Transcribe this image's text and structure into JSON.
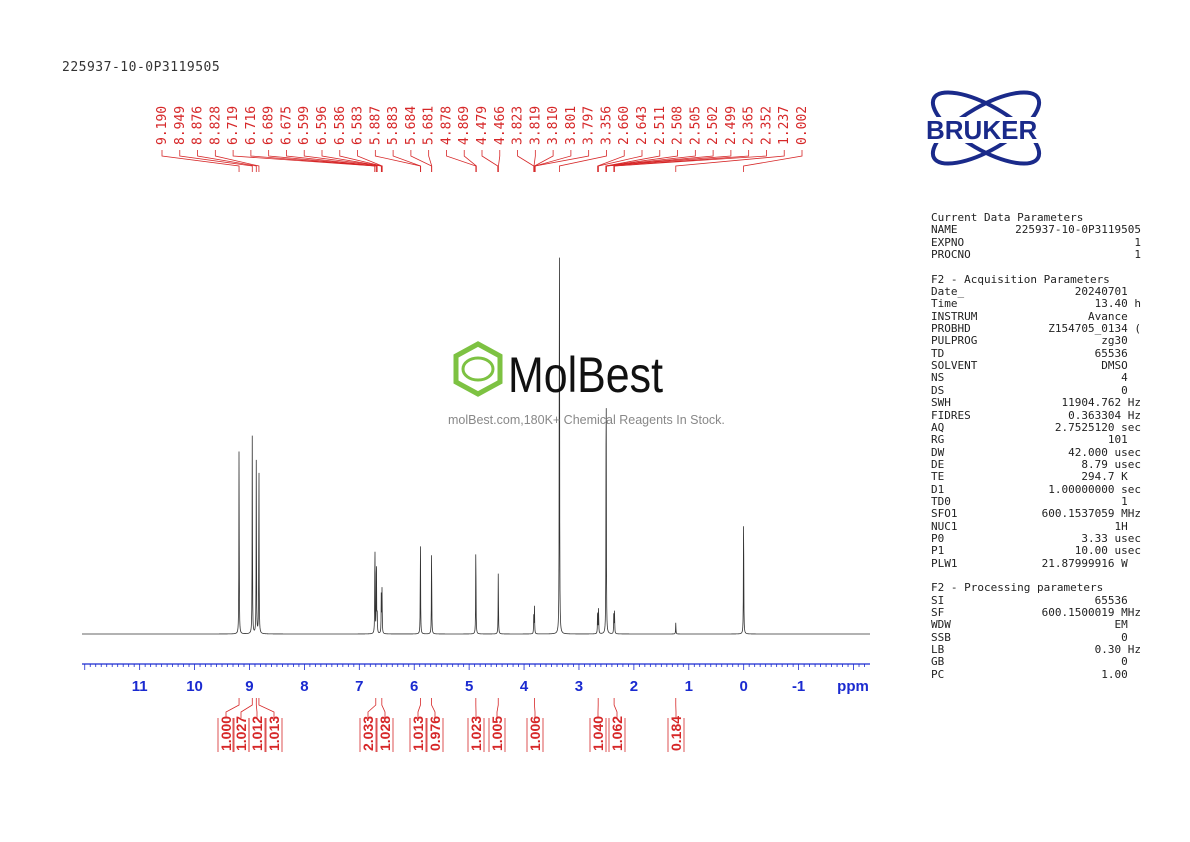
{
  "sample_name": "225937-10-0P3119505",
  "logo": {
    "text": "BRUKER",
    "color": "#1a2a8a"
  },
  "watermark": {
    "brand": "MolBest",
    "tagline": "molBest.com,180K+ Chemical Reagents In Stock.",
    "color": "#7dc242"
  },
  "colors": {
    "peak_labels": "#d62728",
    "axis": "#1a2ad0",
    "spectrum": "#333333"
  },
  "chart_data": {
    "type": "line",
    "xlabel": "ppm",
    "xlim": [
      12.05,
      -2.3
    ],
    "x_reversed": true,
    "x_ticks": [
      "11",
      "10",
      "9",
      "8",
      "7",
      "6",
      "5",
      "4",
      "3",
      "2",
      "1",
      "0",
      "-1"
    ],
    "x_tick_values": [
      11,
      10,
      9,
      8,
      7,
      6,
      5,
      4,
      3,
      2,
      1,
      0,
      -1
    ],
    "peaks": [
      {
        "ppm": 9.19,
        "intensity": 0.43
      },
      {
        "ppm": 8.949,
        "intensity": 0.45
      },
      {
        "ppm": 8.876,
        "intensity": 0.4
      },
      {
        "ppm": 8.828,
        "intensity": 0.4
      },
      {
        "ppm": 6.716,
        "intensity": 0.22
      },
      {
        "ppm": 6.689,
        "intensity": 0.19
      },
      {
        "ppm": 6.675,
        "intensity": 0.05
      },
      {
        "ppm": 6.599,
        "intensity": 0.1
      },
      {
        "ppm": 6.586,
        "intensity": 0.1
      },
      {
        "ppm": 5.887,
        "intensity": 0.22
      },
      {
        "ppm": 5.684,
        "intensity": 0.2
      },
      {
        "ppm": 4.878,
        "intensity": 0.21
      },
      {
        "ppm": 4.469,
        "intensity": 0.14
      },
      {
        "ppm": 3.823,
        "intensity": 0.04
      },
      {
        "ppm": 3.81,
        "intensity": 0.06
      },
      {
        "ppm": 3.356,
        "intensity": 1.0
      },
      {
        "ppm": 2.66,
        "intensity": 0.06
      },
      {
        "ppm": 2.643,
        "intensity": 0.06
      },
      {
        "ppm": 2.505,
        "intensity": 0.65
      },
      {
        "ppm": 2.365,
        "intensity": 0.05
      },
      {
        "ppm": 2.352,
        "intensity": 0.05
      },
      {
        "ppm": 1.237,
        "intensity": 0.025
      },
      {
        "ppm": 0.002,
        "intensity": 0.29
      }
    ],
    "peak_labels": [
      "9.190",
      "8.949",
      "8.876",
      "8.828",
      "6.719",
      "6.716",
      "6.689",
      "6.675",
      "6.599",
      "6.596",
      "6.586",
      "6.583",
      "5.887",
      "5.883",
      "5.684",
      "5.681",
      "4.878",
      "4.869",
      "4.479",
      "4.466",
      "3.823",
      "3.819",
      "3.810",
      "3.801",
      "3.797",
      "3.356",
      "2.660",
      "2.643",
      "2.511",
      "2.508",
      "2.505",
      "2.502",
      "2.499",
      "2.365",
      "2.352",
      "1.237",
      "0.002"
    ],
    "integrals": [
      {
        "ppm": 9.19,
        "value": "1.000"
      },
      {
        "ppm": 8.949,
        "value": "1.027"
      },
      {
        "ppm": 8.876,
        "value": "1.012"
      },
      {
        "ppm": 8.828,
        "value": "1.013"
      },
      {
        "ppm": 6.7,
        "value": "2.033"
      },
      {
        "ppm": 6.59,
        "value": "1.028"
      },
      {
        "ppm": 5.887,
        "value": "1.013"
      },
      {
        "ppm": 5.684,
        "value": "0.976"
      },
      {
        "ppm": 4.878,
        "value": "1.023"
      },
      {
        "ppm": 4.47,
        "value": "1.005"
      },
      {
        "ppm": 3.81,
        "value": "1.006"
      },
      {
        "ppm": 2.65,
        "value": "1.040"
      },
      {
        "ppm": 2.36,
        "value": "1.062"
      },
      {
        "ppm": 1.237,
        "value": "0.184"
      }
    ]
  },
  "parameters": [
    {
      "title": "Current Data Parameters",
      "rows": [
        [
          "NAME",
          "225937-10-0P3119505"
        ],
        [
          "EXPNO",
          "1"
        ],
        [
          "PROCNO",
          "1"
        ]
      ]
    },
    {
      "title": "F2 - Acquisition Parameters",
      "rows": [
        [
          "Date_",
          "20240701  "
        ],
        [
          "Time",
          "13.40 h"
        ],
        [
          "INSTRUM",
          "Avance  "
        ],
        [
          "PROBHD",
          "Z154705_0134 ("
        ],
        [
          "PULPROG",
          "zg30  "
        ],
        [
          "TD",
          "65536  "
        ],
        [
          "SOLVENT",
          "DMSO  "
        ],
        [
          "NS",
          "4  "
        ],
        [
          "DS",
          "0  "
        ],
        [
          "SWH",
          "11904.762 Hz"
        ],
        [
          "FIDRES",
          "0.363304 Hz"
        ],
        [
          "AQ",
          "2.7525120 sec"
        ],
        [
          "RG",
          "101  "
        ],
        [
          "DW",
          "42.000 usec"
        ],
        [
          "DE",
          "8.79 usec"
        ],
        [
          "TE",
          "294.7 K  "
        ],
        [
          "D1",
          "1.00000000 sec"
        ],
        [
          "TD0",
          "1  "
        ],
        [
          "SFO1",
          "600.1537059 MHz"
        ],
        [
          "NUC1",
          "1H  "
        ],
        [
          "P0",
          "3.33 usec"
        ],
        [
          "P1",
          "10.00 usec"
        ],
        [
          "PLW1",
          "21.87999916 W  "
        ]
      ]
    },
    {
      "title": "F2 - Processing parameters",
      "rows": [
        [
          "SI",
          "65536  "
        ],
        [
          "SF",
          "600.1500019 MHz"
        ],
        [
          "WDW",
          "EM  "
        ],
        [
          "SSB",
          "0  "
        ],
        [
          "LB",
          "0.30 Hz"
        ],
        [
          "GB",
          "0  "
        ],
        [
          "PC",
          "1.00  "
        ]
      ]
    }
  ]
}
